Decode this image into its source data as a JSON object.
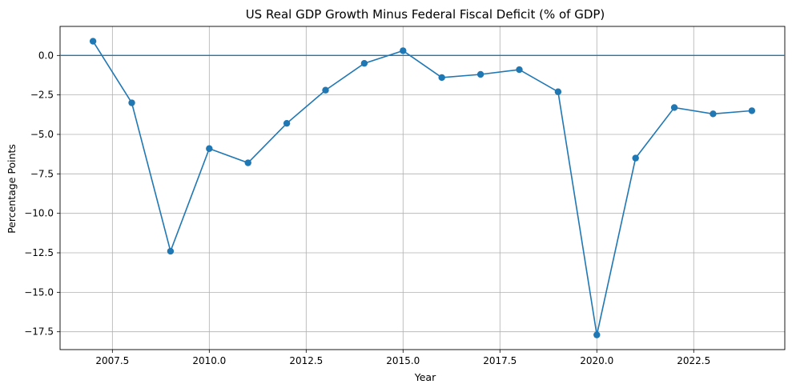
{
  "chart_data": {
    "type": "line",
    "title": "US Real GDP Growth Minus Federal Fiscal Deficit (% of GDP)",
    "xlabel": "Year",
    "ylabel": "Percentage Points",
    "x": [
      2007,
      2008,
      2009,
      2010,
      2011,
      2012,
      2013,
      2014,
      2015,
      2016,
      2017,
      2018,
      2019,
      2020,
      2021,
      2022,
      2023,
      2024
    ],
    "series": [
      {
        "values": [
          0.9,
          -3.0,
          -12.4,
          -5.9,
          -6.8,
          -4.3,
          -2.2,
          -0.5,
          0.3,
          -1.4,
          -1.2,
          -0.9,
          -2.3,
          -17.7,
          -6.5,
          -3.3,
          -3.7,
          -3.5
        ],
        "color": "#1f77b4"
      }
    ],
    "reference_line": {
      "y": 0,
      "color": "#1f77b4"
    },
    "xlim": [
      2006.15,
      2024.85
    ],
    "ylim": [
      -18.63,
      1.84
    ],
    "xticks": [
      2007.5,
      2010.0,
      2012.5,
      2015.0,
      2017.5,
      2020.0,
      2022.5
    ],
    "xtick_labels": [
      "2007.5",
      "2010.0",
      "2012.5",
      "2015.0",
      "2017.5",
      "2020.0",
      "2022.5"
    ],
    "yticks": [
      0.0,
      -2.5,
      -5.0,
      -7.5,
      -10.0,
      -12.5,
      -15.0,
      -17.5
    ],
    "ytick_labels": [
      "0.0",
      "−2.5",
      "−5.0",
      "−7.5",
      "−10.0",
      "−12.5",
      "−15.0",
      "−17.5"
    ],
    "grid": true,
    "marker": "circle"
  }
}
